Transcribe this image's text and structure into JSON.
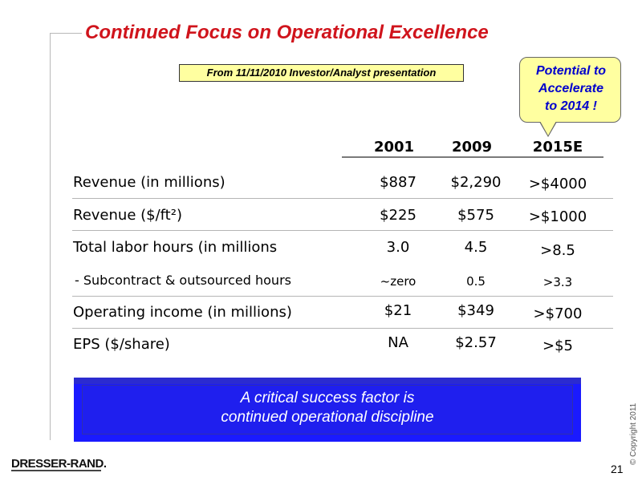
{
  "slide": {
    "title": "Continued Focus on Operational Excellence",
    "source_note": "From 11/11/2010 Investor/Analyst presentation",
    "callout": [
      "Potential to",
      "Accelerate",
      "to 2014 !"
    ],
    "page_number": "21",
    "copyright": "© Copyright 2011",
    "logo_text": "DRESSER-RAND."
  },
  "table": {
    "columns": [
      "2001",
      "2009",
      "2015E"
    ],
    "rows": [
      {
        "label": "Revenue (in millions)",
        "values": [
          "$887",
          "$2,290",
          ">$4000"
        ]
      },
      {
        "label": "Revenue ($/ft²)",
        "values": [
          "$225",
          "$575",
          ">$1000"
        ]
      },
      {
        "label": "Total labor hours (in millions",
        "values": [
          "3.0",
          "4.5",
          ">8.5"
        ]
      },
      {
        "label": "- Subcontract & outsourced hours",
        "values": [
          "~zero",
          "0.5",
          ">3.3"
        ]
      },
      {
        "label": "Operating income (in millions)",
        "values": [
          "$21",
          "$349",
          ">$700"
        ]
      },
      {
        "label": "EPS ($/share)",
        "values": [
          "NA",
          "$2.57",
          ">$5"
        ]
      }
    ]
  },
  "banner": [
    "A critical success factor is",
    "continued operational discipline"
  ]
}
